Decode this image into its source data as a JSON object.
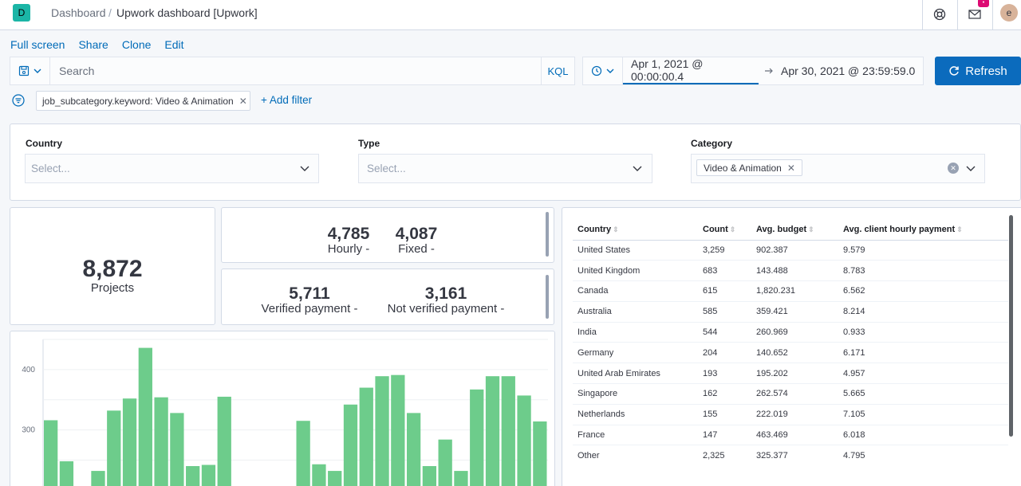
{
  "header": {
    "logo_letter": "D",
    "breadcrumb_root": "Dashboard",
    "breadcrumb_sep": "/",
    "breadcrumb_current": "Upwork dashboard [Upwork]",
    "notification_count": "•",
    "avatar_letter": "e"
  },
  "actions": [
    "Full screen",
    "Share",
    "Clone",
    "Edit"
  ],
  "query": {
    "placeholder": "Search",
    "language": "KQL",
    "start_date": "Apr 1, 2021 @ 00:00:00.4",
    "end_date": "Apr 30, 2021 @ 23:59:59.0",
    "refresh_label": "Refresh"
  },
  "filters": {
    "pill": "job_subcategory.keyword: Video & Animation",
    "add_label": "+ Add filter"
  },
  "controls": {
    "country": {
      "label": "Country",
      "placeholder": "Select..."
    },
    "type": {
      "label": "Type",
      "placeholder": "Select..."
    },
    "category": {
      "label": "Category",
      "value": "Video & Animation"
    }
  },
  "metrics": {
    "projects": {
      "value": "8,872",
      "label": "Projects"
    },
    "hourly": {
      "value": "4,785",
      "label": "Hourly -"
    },
    "fixed": {
      "value": "4,087",
      "label": "Fixed -"
    },
    "verified": {
      "value": "5,711",
      "label": "Verified payment -"
    },
    "not_verified": {
      "value": "3,161",
      "label": "Not verified payment -"
    }
  },
  "table": {
    "columns": [
      "Country",
      "Count",
      "Avg. budget",
      "Avg. client hourly payment"
    ],
    "rows": [
      [
        "United States",
        "3,259",
        "902.387",
        "9.579"
      ],
      [
        "United Kingdom",
        "683",
        "143.488",
        "8.783"
      ],
      [
        "Canada",
        "615",
        "1,820.231",
        "6.562"
      ],
      [
        "Australia",
        "585",
        "359.421",
        "8.214"
      ],
      [
        "India",
        "544",
        "260.969",
        "0.933"
      ],
      [
        "Germany",
        "204",
        "140.652",
        "6.171"
      ],
      [
        "United Arab Emirates",
        "193",
        "195.202",
        "4.957"
      ],
      [
        "Singapore",
        "162",
        "262.574",
        "5.665"
      ],
      [
        "Netherlands",
        "155",
        "222.019",
        "7.105"
      ],
      [
        "France",
        "147",
        "463.469",
        "6.018"
      ],
      [
        "Other",
        "2,325",
        "325.377",
        "4.795"
      ]
    ]
  },
  "chart_data": {
    "type": "bar",
    "color": "#6dcc8b",
    "y_ticks": [
      300,
      400
    ],
    "ylim": [
      207,
      450
    ],
    "values": [
      316,
      248,
      null,
      232,
      332,
      352,
      436,
      354,
      328,
      240,
      242,
      355,
      null,
      null,
      null,
      null,
      315,
      243,
      232,
      342,
      370,
      389,
      391,
      328,
      240,
      284,
      232,
      367,
      389,
      389,
      357,
      314
    ]
  }
}
